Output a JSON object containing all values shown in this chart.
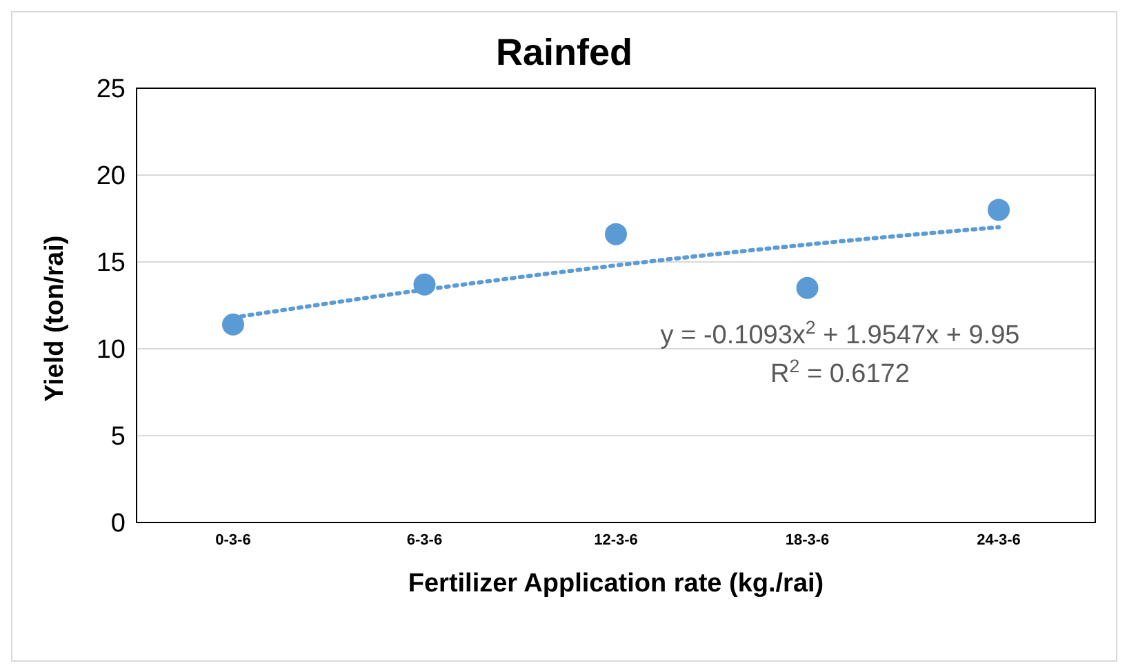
{
  "chart_data": {
    "type": "scatter",
    "title": "Rainfed",
    "xlabel": "Fertilizer Application rate (kg./rai)",
    "ylabel": "Yield (ton/rai)",
    "categories": [
      "0-3-6",
      "6-3-6",
      "12-3-6",
      "18-3-6",
      "24-3-6"
    ],
    "series": [
      {
        "color": "#5b9bd5",
        "marker": "circle",
        "values": [
          11.4,
          13.7,
          16.6,
          13.5,
          18.0
        ]
      },
      {
        "type": "line",
        "color": "#5b9bd5",
        "marker": "none",
        "line_style": "dotted",
        "values": [
          11.8,
          13.4,
          14.8,
          16.0,
          17.0
        ]
      }
    ],
    "ylim": [
      0,
      25
    ],
    "yticks": [
      0,
      5,
      10,
      15,
      20,
      25
    ],
    "grid": "y",
    "annotations": [
      "y = -0.1093x$^{2}$ + 1.9547x + 9.95",
      "R$^{2}$ = 0.6172"
    ]
  }
}
